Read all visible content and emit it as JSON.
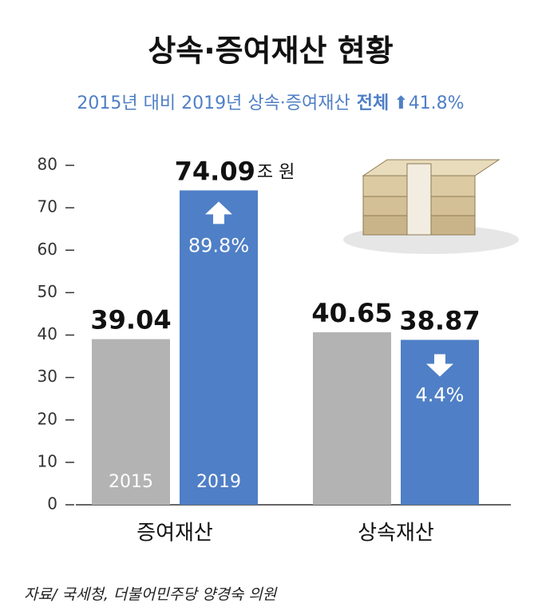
{
  "chart_data": {
    "type": "bar",
    "title": "상속·증여재산 현황",
    "subtitle": "2015년 대비 2019년 상속·증여재산",
    "total_label": "전체",
    "total_change": {
      "value": 41.8,
      "label": "41.8%"
    },
    "categories": [
      "증여재산",
      "상속재산"
    ],
    "series": [
      {
        "name": "2015",
        "color": "#b3b3b3",
        "values": [
          39.04,
          40.65
        ]
      },
      {
        "name": "2019",
        "color": "#4f7fc6",
        "values": [
          74.09,
          38.87
        ],
        "changes": [
          89.8,
          -4.4
        ],
        "change_labels": [
          "89.8%",
          "4.4%"
        ]
      }
    ],
    "unit": "조 원",
    "ylim": [
      0,
      80
    ],
    "yticks": [
      0,
      10,
      20,
      30,
      40,
      50,
      60,
      70,
      80
    ],
    "source": "자료/ 국세청, 더불어민주당 양경숙 의원"
  }
}
